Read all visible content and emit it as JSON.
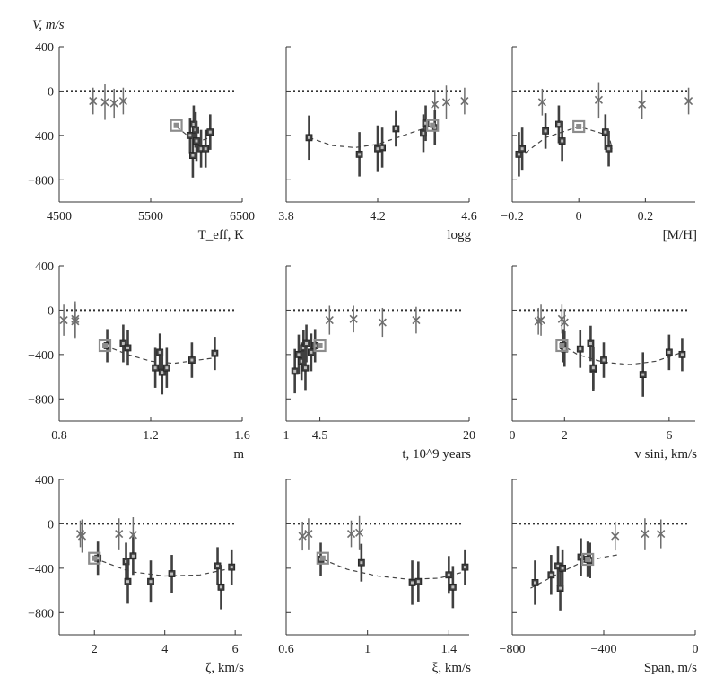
{
  "figure": {
    "y_unit_label": "V, m/s",
    "colors": {
      "frame": "#333333",
      "filled": "#404040",
      "highlight": "#8c8c8c",
      "cross": "#6e6e6e",
      "trend": "#444444",
      "zero": "#333333"
    }
  },
  "chart_data": [
    {
      "type": "scatter",
      "id": "teff",
      "xlabel": "T_eff, K",
      "xlim": [
        4500,
        6500
      ],
      "ylim": [
        -1000,
        400
      ],
      "xticks": [
        4500,
        5500,
        6500
      ],
      "yticks": [
        400,
        0,
        -400,
        -800
      ],
      "series": [
        {
          "name": "crosses",
          "marker": "x",
          "x": [
            4870,
            5000,
            5100,
            5200
          ],
          "y": [
            -90,
            -100,
            -110,
            -90
          ],
          "err": [
            120,
            160,
            130,
            120
          ]
        },
        {
          "name": "stars",
          "marker": "square",
          "x": [
            5930,
            5960,
            5970,
            5990,
            6000,
            6050,
            6100,
            6150
          ],
          "y": [
            -400,
            -580,
            -300,
            -350,
            -450,
            -520,
            -520,
            -370
          ],
          "err": [
            160,
            200,
            170,
            160,
            180,
            170,
            170,
            160
          ]
        },
        {
          "name": "sun",
          "marker": "highlight",
          "x": [
            5780
          ],
          "y": [
            -310
          ],
          "err": [
            0
          ]
        }
      ],
      "trend": {
        "x": [
          5780,
          5900,
          6000,
          6150
        ],
        "y": [
          -320,
          -400,
          -460,
          -420
        ]
      }
    },
    {
      "type": "scatter",
      "id": "logg",
      "xlabel": "logg",
      "xlim": [
        3.8,
        4.6
      ],
      "ylim": [
        -1000,
        400
      ],
      "xticks": [
        3.8,
        4.2,
        4.6
      ],
      "yticks": [],
      "series": [
        {
          "name": "crosses",
          "marker": "x",
          "x": [
            4.45,
            4.5,
            4.58
          ],
          "y": [
            -120,
            -100,
            -90
          ],
          "err": [
            130,
            150,
            120
          ]
        },
        {
          "name": "stars",
          "marker": "square",
          "x": [
            3.9,
            4.12,
            4.2,
            4.22,
            4.28,
            4.4,
            4.41,
            4.45
          ],
          "y": [
            -420,
            -570,
            -520,
            -510,
            -340,
            -380,
            -290,
            -330
          ],
          "err": [
            200,
            200,
            210,
            180,
            160,
            170,
            160,
            160
          ]
        },
        {
          "name": "sun",
          "marker": "highlight",
          "x": [
            4.44
          ],
          "y": [
            -310
          ],
          "err": [
            0
          ]
        }
      ],
      "trend": {
        "x": [
          3.9,
          4.0,
          4.1,
          4.2,
          4.3,
          4.44
        ],
        "y": [
          -420,
          -490,
          -510,
          -480,
          -410,
          -310
        ]
      }
    },
    {
      "type": "scatter",
      "id": "metal",
      "xlabel": "[M/H]",
      "xlim": [
        -0.2,
        0.35
      ],
      "ylim": [
        -1000,
        400
      ],
      "xticks": [
        -0.2,
        0,
        0.2
      ],
      "yticks": [],
      "series": [
        {
          "name": "crosses",
          "marker": "x",
          "x": [
            -0.11,
            0.06,
            0.19,
            0.33
          ],
          "y": [
            -100,
            -80,
            -120,
            -90
          ],
          "err": [
            120,
            160,
            130,
            120
          ]
        },
        {
          "name": "stars",
          "marker": "square",
          "x": [
            -0.18,
            -0.17,
            -0.1,
            -0.06,
            -0.05,
            0.08,
            0.09
          ],
          "y": [
            -570,
            -520,
            -360,
            -300,
            -450,
            -370,
            -520
          ],
          "err": [
            200,
            190,
            160,
            170,
            180,
            160,
            160
          ]
        },
        {
          "name": "sun",
          "marker": "highlight",
          "x": [
            0
          ],
          "y": [
            -320
          ],
          "err": [
            0
          ]
        }
      ],
      "trend": {
        "x": [
          -0.18,
          -0.1,
          0,
          0.09,
          0.1
        ],
        "y": [
          -600,
          -420,
          -320,
          -400,
          -520
        ]
      }
    },
    {
      "type": "scatter",
      "id": "mass",
      "xlabel": "m",
      "xlim": [
        0.8,
        1.6
      ],
      "ylim": [
        -1000,
        400
      ],
      "xticks": [
        0.8,
        1.2,
        1.6
      ],
      "yticks": [
        400,
        0,
        -400,
        -800
      ],
      "series": [
        {
          "name": "crosses",
          "marker": "x",
          "x": [
            0.82,
            0.87,
            0.87
          ],
          "y": [
            -90,
            -80,
            -100
          ],
          "err": [
            140,
            160,
            150
          ]
        },
        {
          "name": "stars",
          "marker": "square",
          "x": [
            1.01,
            1.08,
            1.1,
            1.22,
            1.24,
            1.25,
            1.27,
            1.38,
            1.48
          ],
          "y": [
            -320,
            -300,
            -340,
            -520,
            -380,
            -560,
            -520,
            -450,
            -390
          ],
          "err": [
            150,
            170,
            160,
            180,
            170,
            200,
            180,
            160,
            150
          ]
        },
        {
          "name": "sun",
          "marker": "highlight",
          "x": [
            1.0
          ],
          "y": [
            -320
          ],
          "err": [
            0
          ]
        }
      ],
      "trend": {
        "x": [
          1.0,
          1.1,
          1.2,
          1.3,
          1.48
        ],
        "y": [
          -320,
          -400,
          -460,
          -480,
          -430
        ]
      }
    },
    {
      "type": "scatter",
      "id": "age",
      "xlabel": "t, 10^9 years",
      "xlim": [
        1.0,
        20
      ],
      "ylim": [
        -1000,
        400
      ],
      "xticks": [
        1.0,
        4.5,
        20
      ],
      "yticks": [],
      "series": [
        {
          "name": "crosses",
          "marker": "x",
          "x": [
            5.5,
            8.0,
            11.0,
            14.5
          ],
          "y": [
            -90,
            -80,
            -110,
            -90
          ],
          "err": [
            130,
            120,
            130,
            120
          ]
        },
        {
          "name": "stars",
          "marker": "square",
          "x": [
            1.9,
            2.3,
            2.6,
            2.8,
            3.0,
            3.1,
            3.6,
            4.0
          ],
          "y": [
            -550,
            -400,
            -460,
            -340,
            -520,
            -300,
            -380,
            -320
          ],
          "err": [
            200,
            180,
            170,
            160,
            200,
            170,
            170,
            150
          ]
        },
        {
          "name": "sun",
          "marker": "highlight",
          "x": [
            4.5
          ],
          "y": [
            -320
          ],
          "err": [
            0
          ]
        }
      ],
      "trend": null
    },
    {
      "type": "scatter",
      "id": "vsini",
      "xlabel": "v sini, km/s",
      "xlim": [
        0,
        7
      ],
      "ylim": [
        -1000,
        400
      ],
      "xticks": [
        0,
        2,
        6
      ],
      "yticks": [],
      "series": [
        {
          "name": "crosses",
          "marker": "x",
          "x": [
            1.0,
            1.1,
            1.9,
            2.0
          ],
          "y": [
            -100,
            -90,
            -80,
            -110
          ],
          "err": [
            120,
            140,
            130,
            120
          ]
        },
        {
          "name": "stars",
          "marker": "square",
          "x": [
            1.95,
            2.0,
            2.6,
            3.0,
            3.1,
            3.1,
            3.5,
            5.0,
            6.0,
            6.5
          ],
          "y": [
            -320,
            -350,
            -350,
            -300,
            -530,
            -520,
            -450,
            -580,
            -380,
            -400
          ],
          "err": [
            150,
            160,
            170,
            160,
            200,
            190,
            160,
            200,
            160,
            150
          ]
        },
        {
          "name": "sun",
          "marker": "highlight",
          "x": [
            1.9
          ],
          "y": [
            -320
          ],
          "err": [
            0
          ]
        }
      ],
      "trend": {
        "x": [
          1.8,
          2.5,
          3.5,
          4.5,
          5.5,
          6.5
        ],
        "y": [
          -300,
          -400,
          -470,
          -490,
          -460,
          -380
        ]
      }
    },
    {
      "type": "scatter",
      "id": "zeta",
      "xlabel": "ζ, km/s",
      "xlim": [
        1,
        6.2
      ],
      "ylim": [
        -1000,
        400
      ],
      "xticks": [
        2,
        4,
        6
      ],
      "yticks": [
        400,
        0,
        -400,
        -800
      ],
      "series": [
        {
          "name": "crosses",
          "marker": "x",
          "x": [
            1.6,
            1.65,
            2.7,
            3.1
          ],
          "y": [
            -90,
            -110,
            -90,
            -100
          ],
          "err": [
            120,
            150,
            140,
            160
          ]
        },
        {
          "name": "stars",
          "marker": "square",
          "x": [
            2.1,
            2.9,
            2.95,
            3.1,
            3.6,
            4.2,
            5.5,
            5.6,
            5.9
          ],
          "y": [
            -310,
            -340,
            -520,
            -290,
            -520,
            -450,
            -380,
            -570,
            -390
          ],
          "err": [
            150,
            170,
            200,
            170,
            190,
            170,
            170,
            200,
            160
          ]
        },
        {
          "name": "sun",
          "marker": "highlight",
          "x": [
            2.0
          ],
          "y": [
            -310
          ],
          "err": [
            0
          ]
        }
      ],
      "trend": {
        "x": [
          2.0,
          3.0,
          4.0,
          5.0,
          5.9
        ],
        "y": [
          -310,
          -430,
          -470,
          -460,
          -400
        ]
      }
    },
    {
      "type": "scatter",
      "id": "xi",
      "xlabel": "ξ, km/s",
      "xlim": [
        0.6,
        1.5
      ],
      "ylim": [
        -1000,
        400
      ],
      "xticks": [
        0.6,
        1.0,
        1.4
      ],
      "yticks": [],
      "series": [
        {
          "name": "crosses",
          "marker": "x",
          "x": [
            0.68,
            0.71,
            0.92,
            0.96
          ],
          "y": [
            -110,
            -90,
            -90,
            -80
          ],
          "err": [
            130,
            140,
            120,
            150
          ]
        },
        {
          "name": "stars",
          "marker": "square",
          "x": [
            0.77,
            0.97,
            1.22,
            1.25,
            1.4,
            1.42,
            1.48
          ],
          "y": [
            -320,
            -350,
            -530,
            -520,
            -460,
            -570,
            -390
          ],
          "err": [
            150,
            170,
            200,
            180,
            170,
            190,
            160
          ]
        },
        {
          "name": "sun",
          "marker": "highlight",
          "x": [
            0.78
          ],
          "y": [
            -310
          ],
          "err": [
            0
          ]
        }
      ],
      "trend": {
        "x": [
          0.78,
          0.9,
          1.05,
          1.2,
          1.35,
          1.48
        ],
        "y": [
          -320,
          -410,
          -470,
          -500,
          -490,
          -430
        ]
      }
    },
    {
      "type": "scatter",
      "id": "span",
      "xlabel": "Span, m/s",
      "xlim": [
        -800,
        0
      ],
      "ylim": [
        -1000,
        400
      ],
      "xticks": [
        -800,
        -400,
        0
      ],
      "yticks": [],
      "series": [
        {
          "name": "crosses",
          "marker": "x",
          "x": [
            -350,
            -220,
            -150
          ],
          "y": [
            -110,
            -90,
            -90
          ],
          "err": [
            130,
            140,
            130
          ]
        },
        {
          "name": "stars",
          "marker": "square",
          "x": [
            -700,
            -630,
            -600,
            -590,
            -580,
            -500,
            -470,
            -460
          ],
          "y": [
            -530,
            -460,
            -380,
            -580,
            -400,
            -300,
            -320,
            -330
          ],
          "err": [
            200,
            180,
            180,
            200,
            170,
            170,
            160,
            160
          ]
        },
        {
          "name": "sun",
          "marker": "highlight",
          "x": [
            -470
          ],
          "y": [
            -320
          ],
          "err": [
            0
          ]
        }
      ],
      "trend": {
        "x": [
          -720,
          -600,
          -500,
          -400,
          -340
        ],
        "y": [
          -580,
          -450,
          -350,
          -300,
          -280
        ]
      }
    }
  ]
}
